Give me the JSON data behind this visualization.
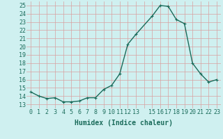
{
  "x": [
    0,
    1,
    2,
    3,
    4,
    5,
    6,
    7,
    8,
    9,
    10,
    11,
    12,
    13,
    15,
    16,
    17,
    18,
    19,
    20,
    21,
    22,
    23
  ],
  "y": [
    14.5,
    14.0,
    13.7,
    13.8,
    13.3,
    13.3,
    13.4,
    13.8,
    13.8,
    14.8,
    15.3,
    16.7,
    20.3,
    21.5,
    23.7,
    25.0,
    24.9,
    23.3,
    22.8,
    18.0,
    16.7,
    15.7,
    16.0
  ],
  "line_color": "#1a6b5a",
  "marker": "+",
  "bg_color": "#cff0f0",
  "grid_color": "#d9a0a0",
  "xlabel": "Humidex (Indice chaleur)",
  "yticks": [
    13,
    14,
    15,
    16,
    17,
    18,
    19,
    20,
    21,
    22,
    23,
    24,
    25
  ],
  "xticks": [
    0,
    1,
    2,
    3,
    4,
    5,
    6,
    7,
    8,
    9,
    10,
    11,
    12,
    13,
    15,
    16,
    17,
    18,
    19,
    20,
    21,
    22,
    23
  ],
  "xtick_labels": [
    "0",
    "1",
    "2",
    "3",
    "4",
    "5",
    "6",
    "7",
    "8",
    "9",
    "10",
    "11",
    "12",
    "13",
    "15",
    "16",
    "17",
    "18",
    "19",
    "20",
    "21",
    "22",
    "23"
  ],
  "xlim": [
    -0.5,
    23.5
  ],
  "ylim": [
    12.5,
    25.5
  ],
  "font_size_xlabel": 7,
  "font_size_tick": 6,
  "line_width": 1.0,
  "marker_size": 3,
  "marker_ew": 0.8
}
